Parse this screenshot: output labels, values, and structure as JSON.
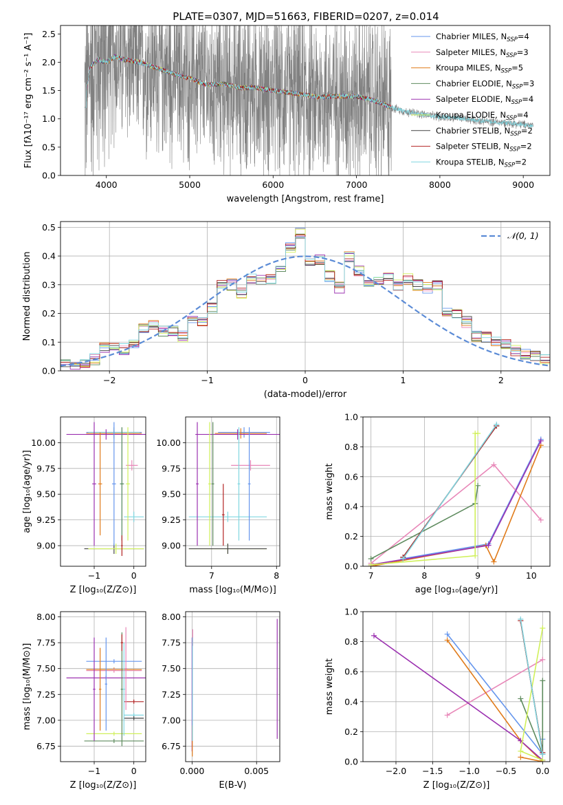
{
  "figure": {
    "title": "PLATE=0307, MJD=51663, FIBERID=0207, z=0.014"
  },
  "series": [
    {
      "key": "chabrier_miles",
      "name": "Chabrier MILES, N",
      "sub": "SSP",
      "n": "=4",
      "color": "#6495ed"
    },
    {
      "key": "salpeter_miles",
      "name": "Salpeter MILES, N",
      "sub": "SSP",
      "n": "=3",
      "color": "#e887b8"
    },
    {
      "key": "kroupa_miles",
      "name": "Kroupa MILES, N",
      "sub": "SSP",
      "n": "=5",
      "color": "#e07b1a"
    },
    {
      "key": "chabrier_elodie",
      "name": "Chabrier ELODIE, N",
      "sub": "SSP",
      "n": "=3",
      "color": "#5d8a5d"
    },
    {
      "key": "salpeter_elodie",
      "name": "Salpeter ELODIE, N",
      "sub": "SSP",
      "n": "=4",
      "color": "#9b30b0"
    },
    {
      "key": "kroupa_elodie",
      "name": "Kroupa ELODIE, N",
      "sub": "SSP",
      "n": "=4",
      "color": "#d0f05a"
    },
    {
      "key": "chabrier_stelib",
      "name": "Chabrier STELIB, N",
      "sub": "SSP",
      "n": "=2",
      "color": "#444444"
    },
    {
      "key": "salpeter_stelib",
      "name": "Salpeter STELIB, N",
      "sub": "SSP",
      "n": "=2",
      "color": "#b22222"
    },
    {
      "key": "kroupa_stelib",
      "name": "Kroupa STELIB, N",
      "sub": "SSP",
      "n": "=2",
      "color": "#7fd6e0"
    }
  ],
  "chart_data": [
    {
      "id": "spectrum",
      "type": "line",
      "xlabel": "wavelength [Angstrom, rest frame]",
      "ylabel": "Flux [fλ10⁻¹⁷ erg cm⁻² s⁻¹ A⁻¹]",
      "xlim": [
        3450,
        9320
      ],
      "ylim": [
        0,
        2.65
      ],
      "xticks": [
        4000,
        5000,
        6000,
        7000,
        8000,
        9000
      ],
      "yticks": [
        0.0,
        0.5,
        1.0,
        1.5,
        2.0,
        2.5
      ],
      "data_color": "#808080",
      "data_range": [
        3740,
        9120
      ],
      "model_range": [
        3740,
        7420
      ],
      "continuum": [
        [
          3740,
          1.25
        ],
        [
          3800,
          1.9
        ],
        [
          3900,
          2.05
        ],
        [
          4000,
          2.0
        ],
        [
          4100,
          2.1
        ],
        [
          4200,
          2.05
        ],
        [
          4400,
          2.0
        ],
        [
          4600,
          1.9
        ],
        [
          4800,
          1.8
        ],
        [
          4900,
          1.75
        ],
        [
          5000,
          1.72
        ],
        [
          5200,
          1.6
        ],
        [
          5400,
          1.62
        ],
        [
          5600,
          1.55
        ],
        [
          5800,
          1.55
        ],
        [
          6000,
          1.5
        ],
        [
          6200,
          1.46
        ],
        [
          6400,
          1.42
        ],
        [
          6560,
          1.38
        ],
        [
          6700,
          1.4
        ],
        [
          6900,
          1.4
        ],
        [
          7000,
          1.4
        ],
        [
          7200,
          1.33
        ],
        [
          7420,
          1.2
        ],
        [
          7600,
          1.12
        ],
        [
          7800,
          1.08
        ],
        [
          8000,
          1.03
        ],
        [
          8200,
          1.02
        ],
        [
          8400,
          0.98
        ],
        [
          8600,
          0.95
        ],
        [
          8800,
          0.93
        ],
        [
          9000,
          0.9
        ],
        [
          9120,
          0.88
        ]
      ]
    },
    {
      "id": "residuals",
      "type": "bar",
      "xlabel": "(data-model)/error",
      "ylabel": "Normed distribution",
      "xlim": [
        -2.5,
        2.5
      ],
      "ylim": [
        0,
        0.52
      ],
      "xticks": [
        -2,
        -1,
        0,
        1,
        2
      ],
      "yticks": [
        0.0,
        0.1,
        0.2,
        0.3,
        0.4,
        0.5
      ],
      "grid": true,
      "bin_edges": [
        -2.5,
        -2.4,
        -2.3,
        -2.2,
        -2.1,
        -2.0,
        -1.9,
        -1.8,
        -1.7,
        -1.6,
        -1.5,
        -1.4,
        -1.3,
        -1.2,
        -1.1,
        -1.0,
        -0.9,
        -0.8,
        -0.7,
        -0.6,
        -0.5,
        -0.4,
        -0.3,
        -0.2,
        -0.1,
        0.0,
        0.1,
        0.2,
        0.3,
        0.4,
        0.5,
        0.6,
        0.7,
        0.8,
        0.9,
        1.0,
        1.1,
        1.2,
        1.3,
        1.4,
        1.5,
        1.6,
        1.7,
        1.8,
        1.9,
        2.0,
        2.1,
        2.2,
        2.3,
        2.4,
        2.5
      ],
      "hist": [
        0.02,
        0.025,
        0.03,
        0.04,
        0.08,
        0.08,
        0.075,
        0.1,
        0.15,
        0.16,
        0.14,
        0.14,
        0.12,
        0.18,
        0.17,
        0.22,
        0.3,
        0.3,
        0.27,
        0.32,
        0.32,
        0.32,
        0.35,
        0.43,
        0.48,
        0.38,
        0.39,
        0.33,
        0.29,
        0.4,
        0.35,
        0.31,
        0.31,
        0.33,
        0.3,
        0.32,
        0.3,
        0.29,
        0.3,
        0.21,
        0.2,
        0.17,
        0.12,
        0.12,
        0.1,
        0.09,
        0.07,
        0.06,
        0.05,
        0.04
      ],
      "gauss": {
        "label": "𝒩(0, 1)",
        "color": "#5b8bd6"
      }
    },
    {
      "id": "age_vs_Z",
      "type": "scatter",
      "xlabel": "Z [log₁₀(Z/Z⊙)]",
      "ylabel": "age  [log₁₀(age/yr)]",
      "xlim": [
        -1.85,
        0.3
      ],
      "ylim": [
        8.8,
        10.25
      ],
      "xticks": [
        -1,
        0
      ],
      "yticks": [
        9.0,
        9.25,
        9.5,
        9.75,
        10.0
      ],
      "grid": true,
      "errorbars": [
        {
          "s": 0,
          "x": -0.5,
          "xerr": 0.7,
          "y": 10.1,
          "yerr": 0.05
        },
        {
          "s": 2,
          "x": -0.5,
          "xerr": 0.7,
          "y": 10.09,
          "yerr": 0.05
        },
        {
          "s": 8,
          "x": -0.5,
          "xerr": 0.65,
          "y": 10.1,
          "yerr": 0.05
        },
        {
          "s": 4,
          "x": -0.7,
          "xerr": 1.0,
          "y": 10.08,
          "yerr": 0.05
        },
        {
          "s": 1,
          "x": -0.05,
          "xerr": 0.15,
          "y": 9.78,
          "yerr": 0.05
        },
        {
          "s": 8,
          "x": 0.0,
          "xerr": 0.25,
          "y": 9.28,
          "yerr": 0.05
        },
        {
          "s": 6,
          "x": -0.5,
          "xerr": 0.75,
          "y": 8.97,
          "yerr": 0.05
        },
        {
          "s": 5,
          "x": -0.45,
          "xerr": 0.7,
          "y": 8.97,
          "yerr": 0.05
        },
        {
          "s": 4,
          "x": -1.0,
          "xerr": 0.05,
          "y": 9.6,
          "yerr": 0.6
        },
        {
          "s": 0,
          "x": -0.5,
          "xerr": 0.05,
          "y": 9.6,
          "yerr": 0.6
        },
        {
          "s": 2,
          "x": -0.85,
          "xerr": 0.05,
          "y": 9.6,
          "yerr": 0.5
        },
        {
          "s": 8,
          "x": -0.3,
          "xerr": 0.05,
          "y": 9.6,
          "yerr": 0.55
        },
        {
          "s": 3,
          "x": -0.3,
          "xerr": 0.05,
          "y": 9.6,
          "yerr": 0.55
        },
        {
          "s": 5,
          "x": -0.15,
          "xerr": 0.05,
          "y": 9.6,
          "yerr": 0.55
        },
        {
          "s": 7,
          "x": -0.3,
          "xerr": 0.02,
          "y": 9.0,
          "yerr": 0.1
        }
      ]
    },
    {
      "id": "age_vs_mass",
      "type": "scatter",
      "xlabel": "mass [log₁₀(M/M⊙)]",
      "ylabel": "",
      "xlim": [
        6.6,
        8.05
      ],
      "ylim": [
        8.8,
        10.25
      ],
      "xticks": [
        7,
        8
      ],
      "yticks": [
        9.0,
        9.25,
        9.5,
        9.75,
        10.0
      ],
      "grid": true,
      "errorbars": [
        {
          "s": 0,
          "x": 7.5,
          "xerr": 0.4,
          "y": 10.1,
          "yerr": 0.05
        },
        {
          "s": 2,
          "x": 7.45,
          "xerr": 0.4,
          "y": 10.09,
          "yerr": 0.05
        },
        {
          "s": 4,
          "x": 7.4,
          "xerr": 0.65,
          "y": 10.08,
          "yerr": 0.05
        },
        {
          "s": 1,
          "x": 7.6,
          "xerr": 0.3,
          "y": 9.78,
          "yerr": 0.05
        },
        {
          "s": 8,
          "x": 7.25,
          "xerr": 0.6,
          "y": 9.28,
          "yerr": 0.05
        },
        {
          "s": 5,
          "x": 7.25,
          "xerr": 0.6,
          "y": 8.97,
          "yerr": 0.05
        },
        {
          "s": 6,
          "x": 7.25,
          "xerr": 0.6,
          "y": 8.97,
          "yerr": 0.05
        },
        {
          "s": 4,
          "x": 6.78,
          "xerr": 0.02,
          "y": 9.6,
          "yerr": 0.6
        },
        {
          "s": 5,
          "x": 6.97,
          "xerr": 0.02,
          "y": 9.6,
          "yerr": 0.6
        },
        {
          "s": 3,
          "x": 7.02,
          "xerr": 0.02,
          "y": 9.6,
          "yerr": 0.6
        },
        {
          "s": 7,
          "x": 7.18,
          "xerr": 0.02,
          "y": 9.3,
          "yerr": 0.3
        },
        {
          "s": 8,
          "x": 7.42,
          "xerr": 0.02,
          "y": 9.6,
          "yerr": 0.55
        },
        {
          "s": 0,
          "x": 7.58,
          "xerr": 0.02,
          "y": 9.6,
          "yerr": 0.55
        }
      ]
    },
    {
      "id": "weight_vs_age",
      "type": "line",
      "xlabel": "age  [log₁₀(age/yr)]",
      "ylabel": "mass weight",
      "xlim": [
        6.85,
        10.35
      ],
      "ylim": [
        0,
        1.0
      ],
      "xticks": [
        7,
        8,
        9,
        10
      ],
      "yticks": [
        0.0,
        0.2,
        0.4,
        0.6,
        0.8,
        1.0
      ],
      "grid": true,
      "lines": [
        {
          "s": 0,
          "x": [
            7.6,
            9.2,
            10.18
          ],
          "y": [
            0.05,
            0.15,
            0.85
          ]
        },
        {
          "s": 1,
          "x": [
            7.0,
            9.3,
            10.18
          ],
          "y": [
            0.02,
            0.68,
            0.31
          ]
        },
        {
          "s": 2,
          "x": [
            7.0,
            9.15,
            9.3,
            10.18
          ],
          "y": [
            0.0,
            0.14,
            0.03,
            0.81
          ]
        },
        {
          "s": 3,
          "x": [
            7.0,
            8.95,
            9.0
          ],
          "y": [
            0.05,
            0.42,
            0.54
          ]
        },
        {
          "s": 4,
          "x": [
            7.0,
            9.2,
            10.18
          ],
          "y": [
            0.01,
            0.14,
            0.84
          ]
        },
        {
          "s": 5,
          "x": [
            7.0,
            8.95,
            8.95,
            9.0
          ],
          "y": [
            0.01,
            0.07,
            0.89,
            0.89
          ]
        },
        {
          "s": 6,
          "x": [
            7.6,
            9.35
          ],
          "y": [
            0.06,
            0.94
          ]
        },
        {
          "s": 7,
          "x": [
            7.6,
            9.35
          ],
          "y": [
            0.06,
            0.94
          ]
        },
        {
          "s": 8,
          "x": [
            7.6,
            9.35
          ],
          "y": [
            0.05,
            0.95
          ]
        }
      ]
    },
    {
      "id": "mass_vs_Z",
      "type": "scatter",
      "xlabel": "Z [log₁₀(Z/Z⊙)]",
      "ylabel": "mass [log₁₀(M/M⊙)]",
      "xlim": [
        -1.85,
        0.3
      ],
      "ylim": [
        6.6,
        8.05
      ],
      "xticks": [
        -1,
        0
      ],
      "yticks": [
        6.75,
        7.0,
        7.25,
        7.5,
        7.75,
        8.0
      ],
      "grid": true,
      "errorbars": [
        {
          "s": 0,
          "x": -0.5,
          "xerr": 0.7,
          "y": 7.57,
          "yerr": 0.02
        },
        {
          "s": 2,
          "x": -0.5,
          "xerr": 0.7,
          "y": 7.49,
          "yerr": 0.02
        },
        {
          "s": 1,
          "x": -0.5,
          "xerr": 0.7,
          "y": 7.48,
          "yerr": 0.02
        },
        {
          "s": 4,
          "x": -0.7,
          "xerr": 1.0,
          "y": 7.41,
          "yerr": 0.02
        },
        {
          "s": 7,
          "x": 0.0,
          "xerr": 0.25,
          "y": 7.18,
          "yerr": 0.02
        },
        {
          "s": 8,
          "x": 0.0,
          "xerr": 0.25,
          "y": 7.05,
          "yerr": 0.02
        },
        {
          "s": 6,
          "x": 0.0,
          "xerr": 0.25,
          "y": 7.02,
          "yerr": 0.02
        },
        {
          "s": 5,
          "x": -0.5,
          "xerr": 0.7,
          "y": 6.87,
          "yerr": 0.02
        },
        {
          "s": 3,
          "x": -0.5,
          "xerr": 0.75,
          "y": 6.8,
          "yerr": 0.02
        },
        {
          "s": 4,
          "x": -1.0,
          "xerr": 0.03,
          "y": 7.3,
          "yerr": 0.5
        },
        {
          "s": 2,
          "x": -0.85,
          "xerr": 0.03,
          "y": 7.3,
          "yerr": 0.4
        },
        {
          "s": 0,
          "x": -0.7,
          "xerr": 0.03,
          "y": 7.35,
          "yerr": 0.45
        },
        {
          "s": 3,
          "x": -0.3,
          "xerr": 0.03,
          "y": 7.3,
          "yerr": 0.55
        },
        {
          "s": 7,
          "x": -0.3,
          "xerr": 0.03,
          "y": 7.75,
          "yerr": 0.08
        },
        {
          "s": 8,
          "x": -0.25,
          "xerr": 0.03,
          "y": 7.3,
          "yerr": 0.45
        },
        {
          "s": 1,
          "x": -0.2,
          "xerr": 0.03,
          "y": 7.5,
          "yerr": 0.4
        }
      ]
    },
    {
      "id": "mass_vs_ebv",
      "type": "scatter",
      "xlabel": "E(B-V)",
      "ylabel": "",
      "xlim": [
        -0.0005,
        0.0068
      ],
      "ylim": [
        6.6,
        8.05
      ],
      "xticks": [
        0.0,
        0.005
      ],
      "xticklabels": [
        "0.000",
        "0.005"
      ],
      "yticks": [
        6.75,
        7.0,
        7.25,
        7.5,
        7.75,
        8.0
      ],
      "grid": true,
      "errorbars": [
        {
          "s": 4,
          "x": 0.0,
          "xerr": 2e-05,
          "y": 7.25,
          "yerr": 0.55
        },
        {
          "s": 1,
          "x": 5e-05,
          "xerr": 2e-05,
          "y": 7.8,
          "yerr": 0.08
        },
        {
          "s": 2,
          "x": 2e-05,
          "xerr": 2e-05,
          "y": 6.8,
          "yerr": 0.15
        },
        {
          "s": 8,
          "x": 3e-05,
          "xerr": 2e-05,
          "y": 7.3,
          "yerr": 0.5
        },
        {
          "s": 4,
          "x": 0.0066,
          "xerr": 2e-05,
          "y": 7.4,
          "yerr": 0.58
        }
      ]
    },
    {
      "id": "weight_vs_Z",
      "type": "line",
      "xlabel": "Z [log₁₀(Z/Z⊙)]",
      "ylabel": "mass weight",
      "xlim": [
        -2.45,
        0.1
      ],
      "ylim": [
        0,
        1.0
      ],
      "xticks": [
        -2.0,
        -1.5,
        -1.0,
        -0.5,
        0.0
      ],
      "yticks": [
        0.0,
        0.2,
        0.4,
        0.6,
        0.8,
        1.0
      ],
      "grid": true,
      "lines": [
        {
          "s": 0,
          "x": [
            -1.3,
            0.0,
            0.0
          ],
          "y": [
            0.85,
            0.05,
            0.15
          ]
        },
        {
          "s": 1,
          "x": [
            -1.3,
            0.0
          ],
          "y": [
            0.31,
            0.68
          ]
        },
        {
          "s": 2,
          "x": [
            -1.3,
            -0.3,
            0.0,
            -0.3
          ],
          "y": [
            0.81,
            0.14,
            0.0,
            0.03
          ]
        },
        {
          "s": 3,
          "x": [
            -0.3,
            0.0,
            0.0
          ],
          "y": [
            0.42,
            0.05,
            0.54
          ]
        },
        {
          "s": 4,
          "x": [
            -2.3,
            -0.3,
            0.0
          ],
          "y": [
            0.84,
            0.14,
            0.01
          ]
        },
        {
          "s": 5,
          "x": [
            0.0,
            -0.3,
            0.0
          ],
          "y": [
            0.89,
            0.07,
            0.01
          ]
        },
        {
          "s": 6,
          "x": [
            -0.3,
            0.0
          ],
          "y": [
            0.94,
            0.06
          ]
        },
        {
          "s": 7,
          "x": [
            -0.3,
            0.0
          ],
          "y": [
            0.94,
            0.06
          ]
        },
        {
          "s": 8,
          "x": [
            -0.3,
            0.0
          ],
          "y": [
            0.95,
            0.05
          ]
        }
      ]
    }
  ]
}
